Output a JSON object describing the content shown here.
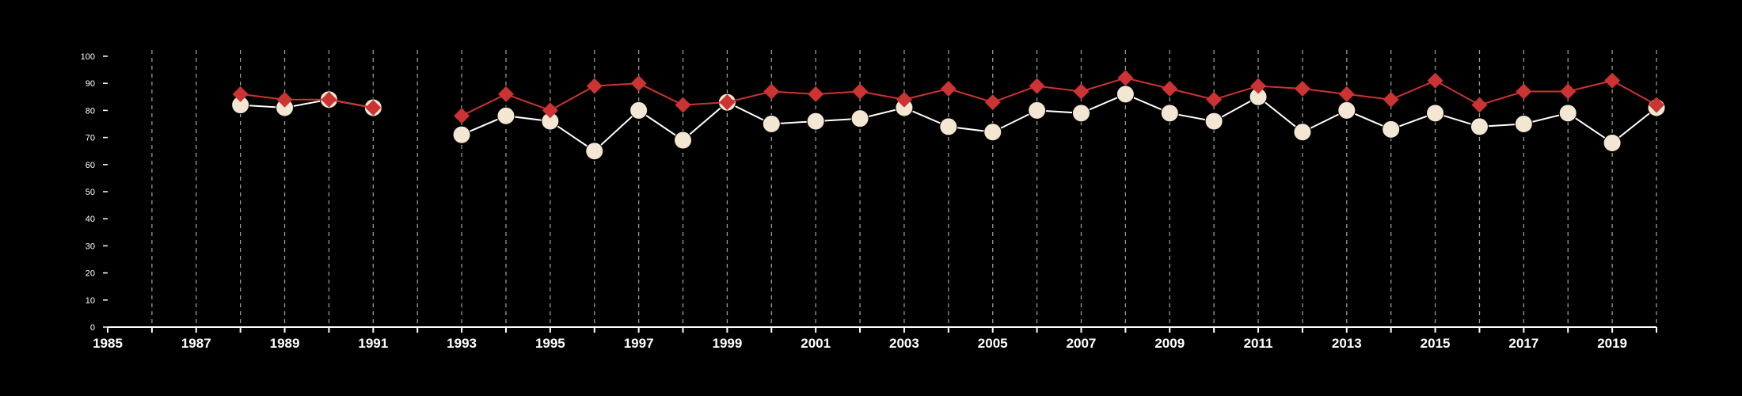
{
  "chart_data": {
    "type": "line",
    "title": "",
    "xlabel": "",
    "ylabel": "",
    "xlim": [
      1985,
      2020
    ],
    "ylim": [
      0,
      100
    ],
    "y_ticks": [
      0,
      10,
      20,
      30,
      40,
      50,
      60,
      70,
      80,
      90,
      100
    ],
    "x_ticks": [
      1985,
      1987,
      1989,
      1991,
      1993,
      1995,
      1997,
      1999,
      2001,
      2003,
      2005,
      2007,
      2009,
      2011,
      2013,
      2015,
      2017,
      2019
    ],
    "grid": "vertical dashed at each year",
    "legend": "none",
    "series": [
      {
        "marker": "diamond",
        "color": "#cc3333",
        "points": [
          [
            1988,
            86
          ],
          [
            1989,
            84
          ],
          [
            1990,
            84
          ],
          [
            1991,
            81
          ],
          [
            1993,
            78
          ],
          [
            1994,
            86
          ],
          [
            1995,
            80
          ],
          [
            1996,
            89
          ],
          [
            1997,
            90
          ],
          [
            1998,
            82
          ],
          [
            1999,
            83
          ],
          [
            2000,
            87
          ],
          [
            2001,
            86
          ],
          [
            2002,
            87
          ],
          [
            2003,
            84
          ],
          [
            2004,
            88
          ],
          [
            2005,
            83
          ],
          [
            2006,
            89
          ],
          [
            2007,
            87
          ],
          [
            2008,
            92
          ],
          [
            2009,
            88
          ],
          [
            2010,
            84
          ],
          [
            2011,
            89
          ],
          [
            2012,
            88
          ],
          [
            2013,
            86
          ],
          [
            2014,
            84
          ],
          [
            2015,
            91
          ],
          [
            2016,
            82
          ],
          [
            2017,
            87
          ],
          [
            2018,
            87
          ],
          [
            2019,
            91
          ],
          [
            2020,
            82
          ]
        ]
      },
      {
        "marker": "circle",
        "color": "#f3e7d3",
        "points": [
          [
            1988,
            82
          ],
          [
            1989,
            81
          ],
          [
            1990,
            84
          ],
          [
            1991,
            81
          ],
          [
            1993,
            71
          ],
          [
            1994,
            78
          ],
          [
            1995,
            76
          ],
          [
            1996,
            65
          ],
          [
            1997,
            80
          ],
          [
            1998,
            69
          ],
          [
            1999,
            83
          ],
          [
            2000,
            75
          ],
          [
            2001,
            76
          ],
          [
            2002,
            77
          ],
          [
            2003,
            81
          ],
          [
            2004,
            74
          ],
          [
            2005,
            72
          ],
          [
            2006,
            80
          ],
          [
            2007,
            79
          ],
          [
            2008,
            86
          ],
          [
            2009,
            79
          ],
          [
            2010,
            76
          ],
          [
            2011,
            85
          ],
          [
            2012,
            72
          ],
          [
            2013,
            80
          ],
          [
            2014,
            73
          ],
          [
            2015,
            79
          ],
          [
            2016,
            74
          ],
          [
            2017,
            75
          ],
          [
            2018,
            79
          ],
          [
            2019,
            68
          ],
          [
            2020,
            81
          ]
        ]
      }
    ]
  }
}
